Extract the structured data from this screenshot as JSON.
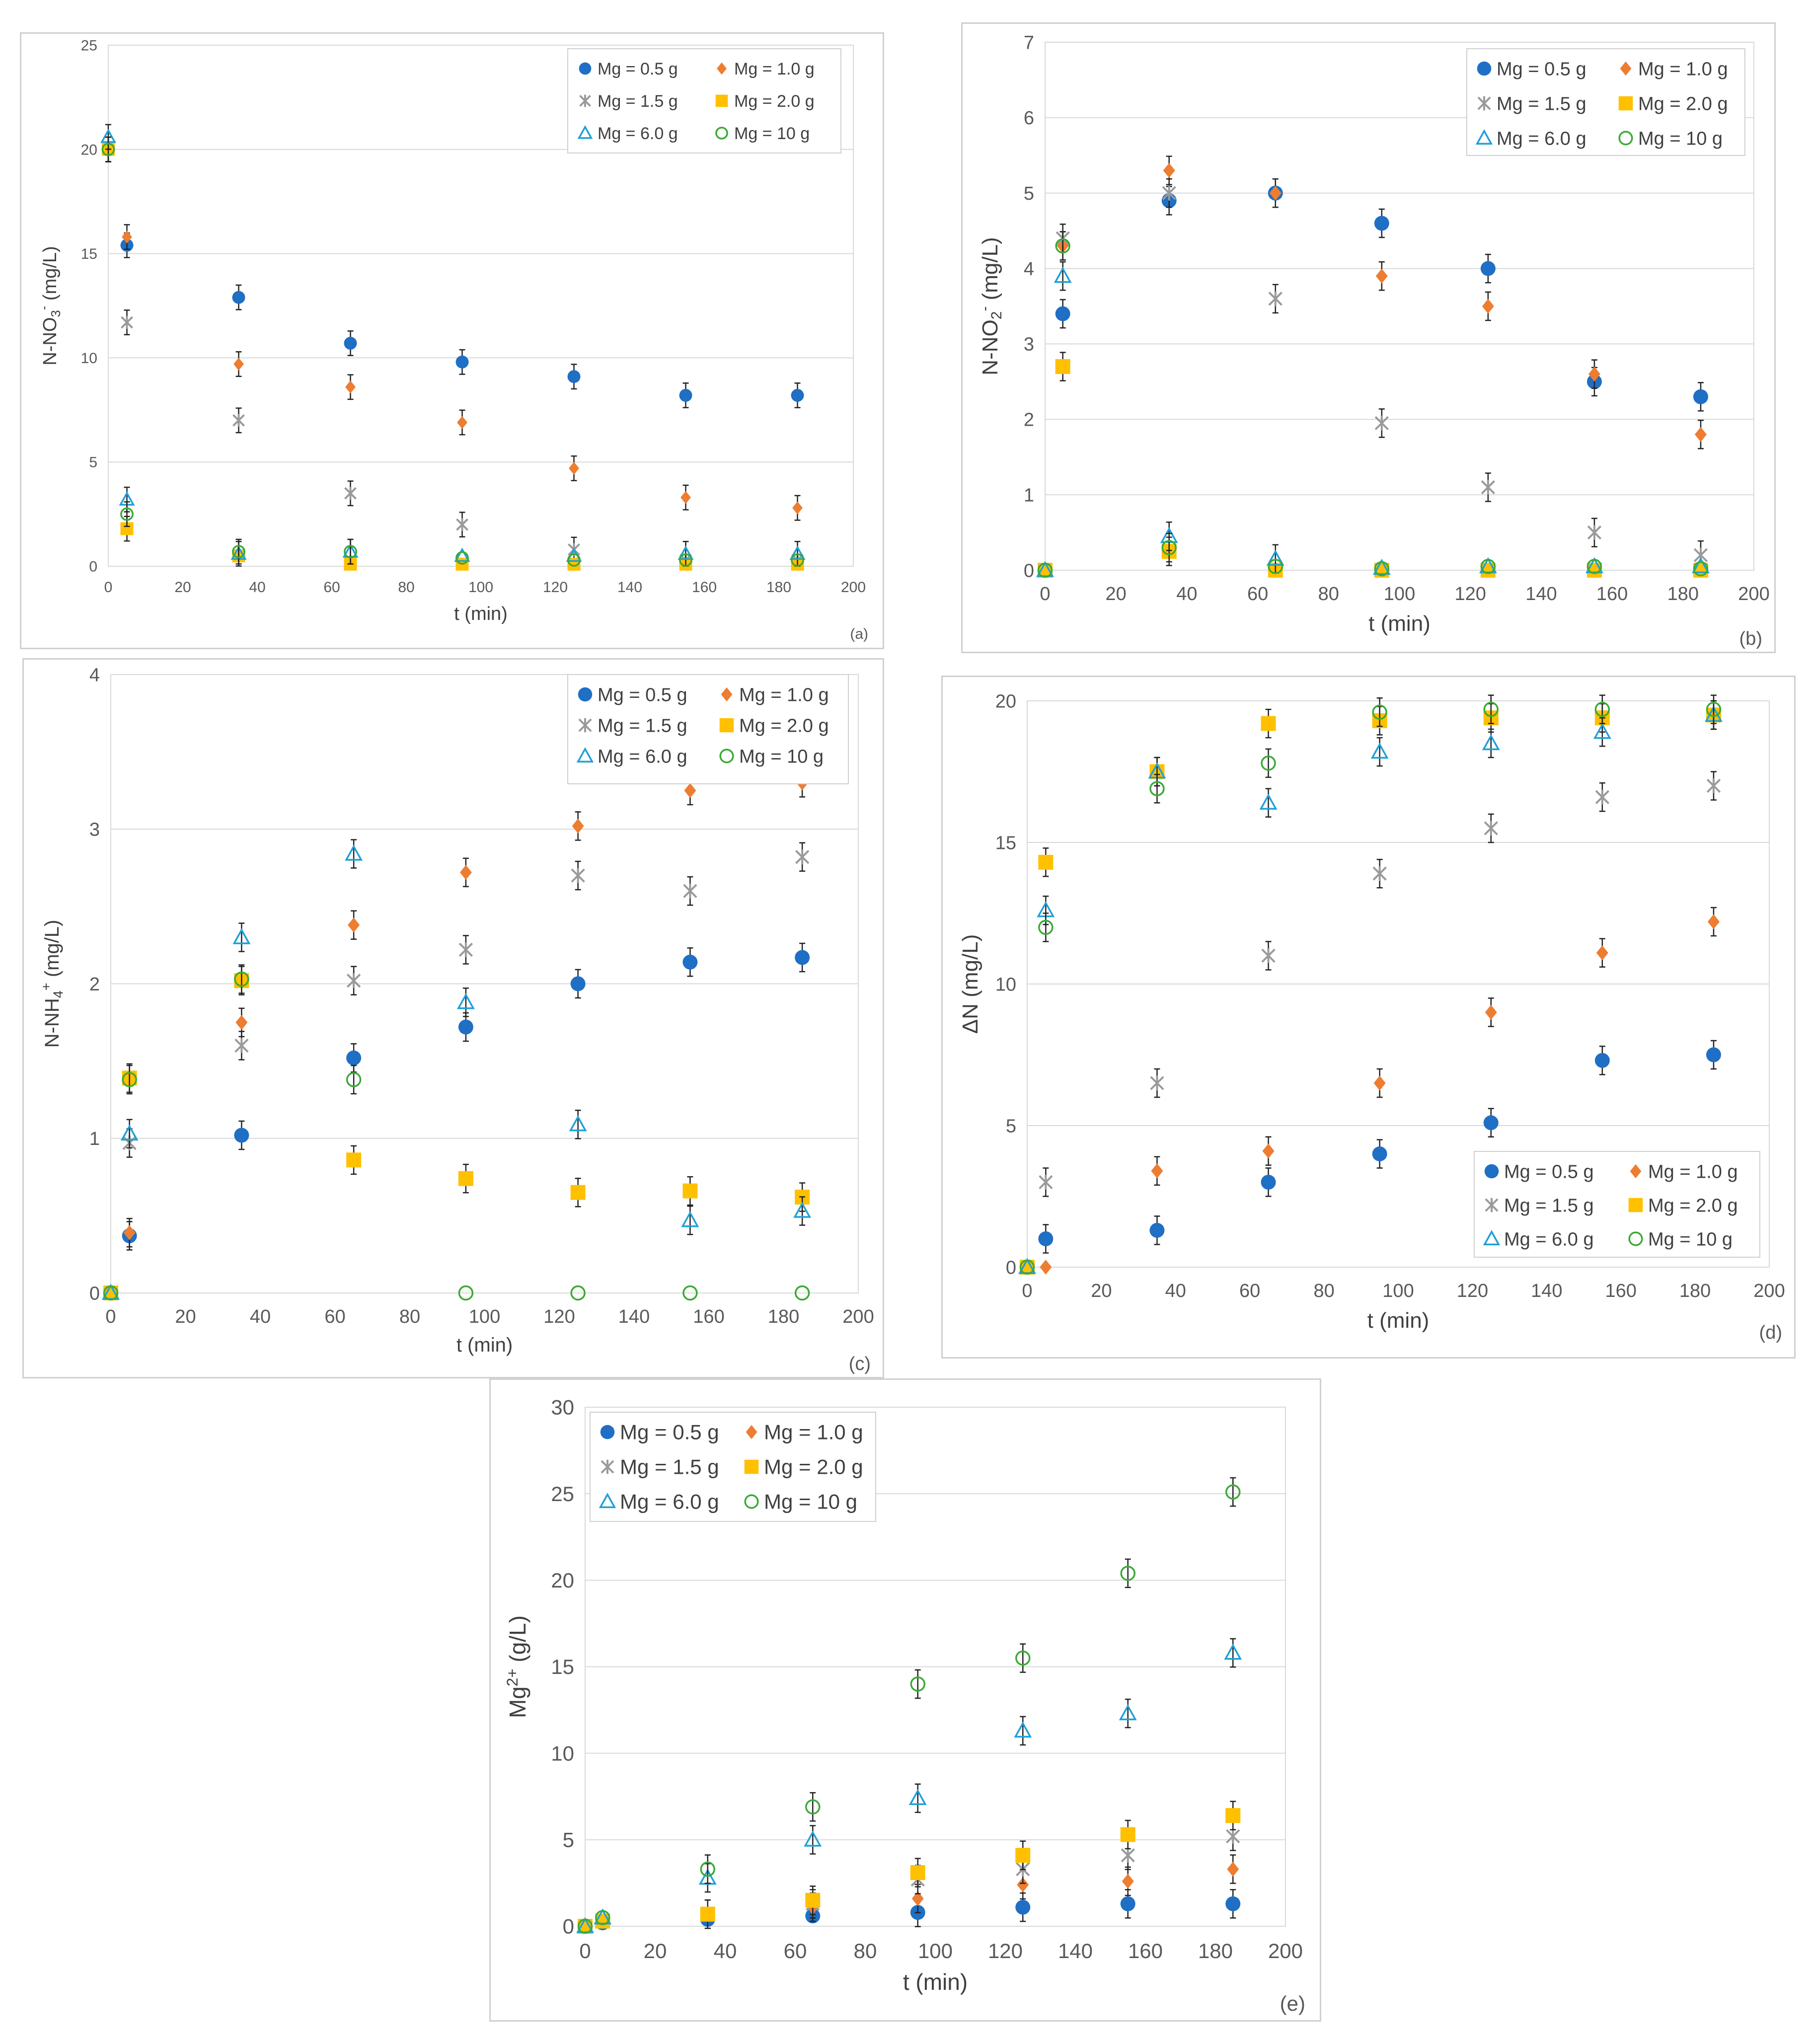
{
  "colors": {
    "mg05": "#1f6fc4",
    "mg10": "#ed7d31",
    "mg15": "#9a9a9a",
    "mg20": "#ffc000",
    "mg60": "#1fa0d8",
    "mg100": "#3aaa35"
  },
  "chart_data": [
    {
      "id": "a",
      "type": "scatter",
      "panel_label": "(a)",
      "xlabel": "t (min)",
      "ylabel": {
        "main": "N-NO",
        "sub": "3",
        "sup": "-",
        "tail": " (mg/L)"
      },
      "xlim": [
        0,
        200
      ],
      "ylim": [
        0,
        25
      ],
      "xticks": [
        "0",
        "20",
        "40",
        "60",
        "80",
        "100",
        "120",
        "140",
        "160",
        "180",
        "200"
      ],
      "yticks": [
        "0",
        "5",
        "10",
        "15",
        "20",
        "25"
      ],
      "legend_position": "top-right",
      "series": [
        {
          "name": "Mg = 0.5 g",
          "marker": "circle",
          "color_key": "mg05",
          "x": [
            0,
            5,
            35,
            65,
            95,
            125,
            155,
            185
          ],
          "y": [
            20.0,
            15.4,
            12.9,
            10.7,
            9.8,
            9.1,
            8.2,
            8.2
          ]
        },
        {
          "name": "Mg = 1.0 g",
          "marker": "diamond",
          "color_key": "mg10",
          "x": [
            0,
            5,
            35,
            65,
            95,
            125,
            155,
            185
          ],
          "y": [
            20.0,
            15.8,
            9.7,
            8.6,
            6.9,
            4.7,
            3.3,
            2.8
          ]
        },
        {
          "name": "Mg = 1.5 g",
          "marker": "star",
          "color_key": "mg15",
          "x": [
            0,
            5,
            35,
            65,
            95,
            125,
            155,
            185
          ],
          "y": [
            20.0,
            11.7,
            7.0,
            3.5,
            2.0,
            0.8,
            0.3,
            0.3
          ]
        },
        {
          "name": "Mg = 2.0 g",
          "marker": "square",
          "color_key": "mg20",
          "x": [
            0,
            5,
            35,
            65,
            95,
            125,
            155,
            185
          ],
          "y": [
            20.0,
            1.8,
            0.5,
            0.1,
            0.1,
            0.1,
            0.1,
            0.1
          ]
        },
        {
          "name": "Mg = 6.0 g",
          "marker": "triangle",
          "color_key": "mg60",
          "x": [
            0,
            5,
            35,
            65,
            95,
            125,
            155,
            185
          ],
          "y": [
            20.6,
            3.2,
            0.6,
            0.7,
            0.5,
            0.5,
            0.6,
            0.6
          ]
        },
        {
          "name": "Mg = 10 g",
          "marker": "ring",
          "color_key": "mg100",
          "x": [
            0,
            5,
            35,
            65,
            95,
            125,
            155,
            185
          ],
          "y": [
            20.0,
            2.5,
            0.7,
            0.7,
            0.4,
            0.3,
            0.3,
            0.3
          ]
        }
      ]
    },
    {
      "id": "b",
      "type": "scatter",
      "panel_label": "(b)",
      "xlabel": "t (min)",
      "ylabel": {
        "main": "N-NO",
        "sub": "2",
        "sup": "-",
        "tail": " (mg/L)"
      },
      "xlim": [
        0,
        200
      ],
      "ylim": [
        0,
        7
      ],
      "xticks": [
        "0",
        "20",
        "40",
        "60",
        "80",
        "100",
        "120",
        "140",
        "160",
        "180",
        "200"
      ],
      "yticks": [
        "0",
        "1",
        "2",
        "3",
        "4",
        "5",
        "6",
        "7"
      ],
      "legend_position": "top-right",
      "series": [
        {
          "name": "Mg = 0.5 g",
          "marker": "circle",
          "color_key": "mg05",
          "x": [
            0,
            5,
            35,
            65,
            95,
            125,
            155,
            185
          ],
          "y": [
            0,
            3.4,
            4.9,
            5.0,
            4.6,
            4.0,
            2.5,
            2.3
          ]
        },
        {
          "name": "Mg = 1.0 g",
          "marker": "diamond",
          "color_key": "mg10",
          "x": [
            0,
            5,
            35,
            65,
            95,
            125,
            155,
            185
          ],
          "y": [
            0,
            4.3,
            5.3,
            5.0,
            3.9,
            3.5,
            2.6,
            1.8
          ]
        },
        {
          "name": "Mg = 1.5 g",
          "marker": "star",
          "color_key": "mg15",
          "x": [
            0,
            5,
            35,
            65,
            95,
            125,
            155,
            185
          ],
          "y": [
            0,
            4.4,
            5.0,
            3.6,
            1.95,
            1.1,
            0.5,
            0.2
          ]
        },
        {
          "name": "Mg = 2.0 g",
          "marker": "square",
          "color_key": "mg20",
          "x": [
            0,
            5,
            35,
            65,
            95,
            125,
            155,
            185
          ],
          "y": [
            0,
            2.7,
            0.25,
            0.0,
            0.0,
            0.0,
            0.0,
            0.0
          ]
        },
        {
          "name": "Mg = 6.0 g",
          "marker": "triangle",
          "color_key": "mg60",
          "x": [
            0,
            5,
            35,
            65,
            95,
            125,
            155,
            185
          ],
          "y": [
            0,
            3.9,
            0.45,
            0.15,
            0.03,
            0.05,
            0.05,
            0.05
          ]
        },
        {
          "name": "Mg = 10 g",
          "marker": "ring",
          "color_key": "mg100",
          "x": [
            0,
            5,
            35,
            65,
            95,
            125,
            155,
            185
          ],
          "y": [
            0,
            4.3,
            0.3,
            0.05,
            0.02,
            0.05,
            0.05,
            0.02
          ]
        }
      ]
    },
    {
      "id": "c",
      "type": "scatter",
      "panel_label": "(c)",
      "xlabel": "t (min)",
      "ylabel": {
        "main": "N-NH",
        "sub": "4",
        "sup": "+",
        "tail": " (mg/L)"
      },
      "xlim": [
        0,
        200
      ],
      "ylim": [
        0,
        4
      ],
      "xticks": [
        "0",
        "20",
        "40",
        "60",
        "80",
        "100",
        "120",
        "140",
        "160",
        "180",
        "200"
      ],
      "yticks": [
        "0",
        "1",
        "2",
        "3",
        "4"
      ],
      "legend_position": "top-right",
      "series": [
        {
          "name": "Mg = 0.5 g",
          "marker": "circle",
          "color_key": "mg05",
          "x": [
            0,
            5,
            35,
            65,
            95,
            125,
            155,
            185
          ],
          "y": [
            0,
            0.37,
            1.02,
            1.52,
            1.72,
            2.0,
            2.14,
            2.17
          ]
        },
        {
          "name": "Mg = 1.0 g",
          "marker": "diamond",
          "color_key": "mg10",
          "x": [
            0,
            5,
            35,
            65,
            95,
            125,
            155,
            185
          ],
          "y": [
            0,
            0.39,
            1.75,
            2.38,
            2.72,
            3.02,
            3.25,
            3.3
          ]
        },
        {
          "name": "Mg = 1.5 g",
          "marker": "star",
          "color_key": "mg15",
          "x": [
            0,
            5,
            35,
            65,
            95,
            125,
            155,
            185
          ],
          "y": [
            0,
            0.97,
            1.6,
            2.02,
            2.22,
            2.7,
            2.6,
            2.82
          ]
        },
        {
          "name": "Mg = 2.0 g",
          "marker": "square",
          "color_key": "mg20",
          "x": [
            0,
            5,
            35,
            65,
            95,
            125,
            155,
            185
          ],
          "y": [
            0,
            1.39,
            2.02,
            0.86,
            0.74,
            0.65,
            0.66,
            0.62
          ]
        },
        {
          "name": "Mg = 6.0 g",
          "marker": "triangle",
          "color_key": "mg60",
          "x": [
            0,
            5,
            35,
            65,
            95,
            125,
            155,
            185
          ],
          "y": [
            0,
            1.03,
            2.3,
            2.84,
            1.88,
            1.09,
            0.47,
            0.53
          ]
        },
        {
          "name": "Mg = 10 g",
          "marker": "ring",
          "color_key": "mg100",
          "x": [
            0,
            5,
            35,
            65,
            95,
            125,
            155,
            185
          ],
          "y": [
            0,
            1.38,
            2.03,
            1.38,
            0,
            0,
            0,
            0
          ]
        }
      ]
    },
    {
      "id": "d",
      "type": "scatter",
      "panel_label": "(d)",
      "xlabel": "t (min)",
      "ylabel": {
        "main": "ΔN (mg/L)",
        "sub": "",
        "sup": "",
        "tail": ""
      },
      "xlim": [
        0,
        200
      ],
      "ylim": [
        0,
        20
      ],
      "xticks": [
        "0",
        "20",
        "40",
        "60",
        "80",
        "100",
        "120",
        "140",
        "160",
        "180",
        "200"
      ],
      "yticks": [
        "0",
        "5",
        "10",
        "15",
        "20"
      ],
      "legend_position": "bottom-right",
      "series": [
        {
          "name": "Mg = 0.5 g",
          "marker": "circle",
          "color_key": "mg05",
          "x": [
            0,
            5,
            35,
            65,
            95,
            125,
            155,
            185
          ],
          "y": [
            0,
            1.0,
            1.3,
            3.0,
            4.0,
            5.1,
            7.3,
            7.5
          ]
        },
        {
          "name": "Mg = 1.0 g",
          "marker": "diamond",
          "color_key": "mg10",
          "x": [
            0,
            5,
            35,
            65,
            95,
            125,
            155,
            185
          ],
          "y": [
            0,
            0,
            3.4,
            4.1,
            6.5,
            9.0,
            11.1,
            12.2
          ]
        },
        {
          "name": "Mg = 1.5 g",
          "marker": "star",
          "color_key": "mg15",
          "x": [
            0,
            5,
            35,
            65,
            95,
            125,
            155,
            185
          ],
          "y": [
            0,
            3.0,
            6.5,
            11.0,
            13.9,
            15.5,
            16.6,
            17.0
          ]
        },
        {
          "name": "Mg = 2.0 g",
          "marker": "square",
          "color_key": "mg20",
          "x": [
            0,
            5,
            35,
            65,
            95,
            125,
            155,
            185
          ],
          "y": [
            0,
            14.3,
            17.5,
            19.2,
            19.3,
            19.4,
            19.4,
            19.5
          ]
        },
        {
          "name": "Mg = 6.0 g",
          "marker": "triangle",
          "color_key": "mg60",
          "x": [
            0,
            5,
            35,
            65,
            95,
            125,
            155,
            185
          ],
          "y": [
            0,
            12.6,
            17.5,
            16.4,
            18.2,
            18.5,
            18.9,
            19.5
          ]
        },
        {
          "name": "Mg = 10 g",
          "marker": "ring",
          "color_key": "mg100",
          "x": [
            0,
            5,
            35,
            65,
            95,
            125,
            155,
            185
          ],
          "y": [
            0,
            12.0,
            16.9,
            17.8,
            19.6,
            19.7,
            19.7,
            19.7
          ]
        }
      ]
    },
    {
      "id": "e",
      "type": "scatter",
      "panel_label": "(e)",
      "xlabel": "t (min)",
      "ylabel": {
        "main": "Mg",
        "sub": "",
        "sup": "2+",
        "tail": " (g/L)"
      },
      "xlim": [
        0,
        200
      ],
      "ylim": [
        0,
        30
      ],
      "xticks": [
        "0",
        "20",
        "40",
        "60",
        "80",
        "100",
        "120",
        "140",
        "160",
        "180",
        "200"
      ],
      "yticks": [
        "0",
        "5",
        "10",
        "15",
        "20",
        "25",
        "30"
      ],
      "legend_position": "top-left",
      "series": [
        {
          "name": "Mg = 0.5 g",
          "marker": "circle",
          "color_key": "mg05",
          "x": [
            0,
            5,
            35,
            65,
            95,
            125,
            155,
            185
          ],
          "y": [
            0,
            0.2,
            0.4,
            0.6,
            0.8,
            1.1,
            1.3,
            1.3
          ]
        },
        {
          "name": "Mg = 1.0 g",
          "marker": "diamond",
          "color_key": "mg10",
          "x": [
            0,
            5,
            35,
            65,
            95,
            125,
            155,
            185
          ],
          "y": [
            0,
            0.3,
            0.6,
            1.1,
            1.6,
            2.4,
            2.6,
            3.3
          ]
        },
        {
          "name": "Mg = 1.5 g",
          "marker": "star",
          "color_key": "mg15",
          "x": [
            0,
            5,
            35,
            65,
            95,
            125,
            155,
            185
          ],
          "y": [
            0,
            0.3,
            0.7,
            1.3,
            2.7,
            3.3,
            4.1,
            5.2
          ]
        },
        {
          "name": "Mg = 2.0 g",
          "marker": "square",
          "color_key": "mg20",
          "x": [
            0,
            5,
            35,
            65,
            95,
            125,
            155,
            185
          ],
          "y": [
            0,
            0.3,
            0.7,
            1.5,
            3.1,
            4.1,
            5.3,
            6.4
          ]
        },
        {
          "name": "Mg = 6.0 g",
          "marker": "triangle",
          "color_key": "mg60",
          "x": [
            0,
            5,
            35,
            65,
            95,
            125,
            155,
            185
          ],
          "y": [
            0,
            0.5,
            2.8,
            5.0,
            7.4,
            11.3,
            12.3,
            15.8
          ]
        },
        {
          "name": "Mg = 10 g",
          "marker": "ring",
          "color_key": "mg100",
          "x": [
            0,
            5,
            35,
            65,
            95,
            125,
            155,
            185
          ],
          "y": [
            0,
            0.5,
            3.3,
            6.9,
            14.0,
            15.5,
            20.4,
            25.1
          ]
        }
      ]
    }
  ]
}
